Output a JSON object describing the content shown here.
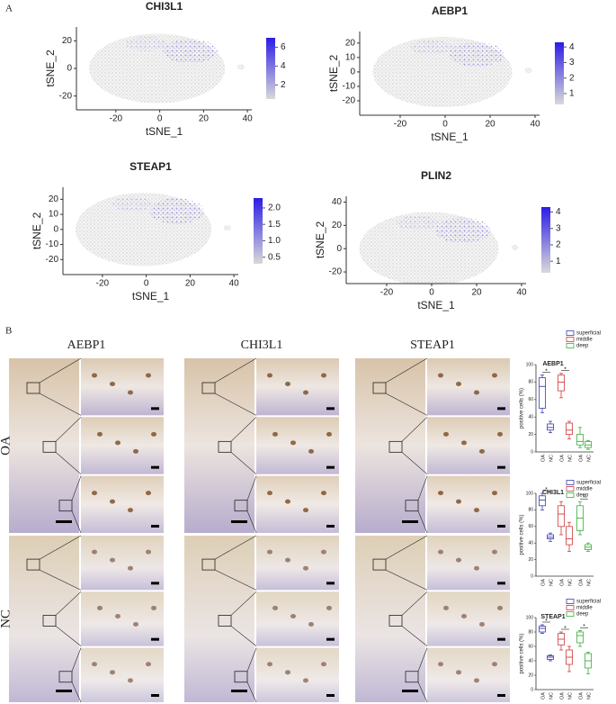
{
  "panel_a": {
    "label": "A",
    "plots": [
      {
        "title": "CHI3L1",
        "xlabel": "tSNE_1",
        "ylabel": "tSNE_2",
        "xlim": [
          -38,
          42
        ],
        "ylim": [
          -30,
          30
        ],
        "xticks": [
          -20,
          0,
          20,
          40
        ],
        "yticks": [
          -20,
          0,
          20
        ],
        "colorbar": {
          "lim": [
            0.5,
            7
          ],
          "ticks": [
            2,
            4,
            6
          ]
        }
      },
      {
        "title": "AEBP1",
        "xlabel": "tSNE_1",
        "ylabel": "tSNE_2",
        "xlim": [
          -38,
          42
        ],
        "ylim": [
          -30,
          28
        ],
        "xticks": [
          -20,
          0,
          20,
          40
        ],
        "yticks": [
          -20,
          -10,
          0,
          10,
          20
        ],
        "colorbar": {
          "lim": [
            0.3,
            4.3
          ],
          "ticks": [
            1,
            2,
            3,
            4
          ]
        }
      },
      {
        "title": "STEAP1",
        "xlabel": "tSNE_1",
        "ylabel": "tSNE_2",
        "xlim": [
          -38,
          42
        ],
        "ylim": [
          -30,
          28
        ],
        "xticks": [
          -20,
          0,
          20,
          40
        ],
        "yticks": [
          -20,
          -10,
          0,
          10,
          20
        ],
        "colorbar": {
          "lim": [
            0.3,
            2.3
          ],
          "ticks": [
            0.5,
            {
              "value": 1,
              "label": "1.0"
            },
            1.5,
            {
              "value": 2,
              "label": "2.0"
            }
          ]
        }
      },
      {
        "title": "PLIN2",
        "xlabel": "tSNE_1",
        "ylabel": "tSNE_2",
        "xlim": [
          -38,
          42
        ],
        "ylim": [
          -30,
          45
        ],
        "xticks": [
          -20,
          0,
          20,
          40
        ],
        "yticks": [
          -20,
          0,
          20,
          40
        ],
        "colorbar": {
          "lim": [
            0.3,
            4.3
          ],
          "ticks": [
            1,
            2,
            3,
            4
          ]
        }
      }
    ]
  },
  "panel_b": {
    "label": "B",
    "images": {
      "genes": [
        "AEBP1",
        "CHI3L1",
        "STEAP1"
      ],
      "rows": [
        "OA",
        "NC"
      ]
    },
    "charts": [
      {
        "type": "box",
        "title": "AEBP1",
        "ylabel": "positive cells (%)",
        "ylim": [
          0,
          100
        ],
        "yticks": [
          0,
          20,
          40,
          60,
          80,
          100
        ],
        "categories": [
          "OA",
          "NC"
        ],
        "series": [
          {
            "name": "superficial",
            "color": "#3b3bb0",
            "annotation": "*",
            "boxes": [
              {
                "min": 45,
                "q1": 50,
                "median": 75,
                "q3": 85,
                "max": 88
              },
              {
                "min": 22,
                "q1": 25,
                "median": 28,
                "q3": 32,
                "max": 35
              }
            ]
          },
          {
            "name": "middle",
            "color": "#d03a3a",
            "annotation": "*",
            "boxes": [
              {
                "min": 62,
                "q1": 70,
                "median": 80,
                "q3": 88,
                "max": 90
              },
              {
                "min": 15,
                "q1": 20,
                "median": 25,
                "q3": 33,
                "max": 35
              }
            ]
          },
          {
            "name": "deep",
            "color": "#3aae3a",
            "boxes": [
              {
                "min": 5,
                "q1": 8,
                "median": 12,
                "q3": 20,
                "max": 28
              },
              {
                "min": 3,
                "q1": 5,
                "median": 8,
                "q3": 12,
                "max": 13
              }
            ]
          }
        ]
      },
      {
        "type": "box",
        "title": "CHI3L1",
        "ylabel": "positive cells (%)",
        "ylim": [
          0,
          100
        ],
        "yticks": [
          0,
          20,
          40,
          60,
          80,
          100
        ],
        "categories": [
          "OA",
          "NC"
        ],
        "series": [
          {
            "name": "superficial",
            "color": "#3b3bb0",
            "annotation": "*",
            "boxes": [
              {
                "min": 80,
                "q1": 85,
                "median": 92,
                "q3": 97,
                "max": 100
              },
              {
                "min": 42,
                "q1": 45,
                "median": 47,
                "q3": 50,
                "max": 52
              }
            ]
          },
          {
            "name": "middle",
            "color": "#d03a3a",
            "boxes": [
              {
                "min": 50,
                "q1": 60,
                "median": 75,
                "q3": 85,
                "max": 90
              },
              {
                "min": 30,
                "q1": 38,
                "median": 45,
                "q3": 60,
                "max": 65
              }
            ]
          },
          {
            "name": "deep",
            "color": "#3aae3a",
            "annotation": "*",
            "boxes": [
              {
                "min": 50,
                "q1": 55,
                "median": 70,
                "q3": 85,
                "max": 90
              },
              {
                "min": 30,
                "q1": 32,
                "median": 35,
                "q3": 38,
                "max": 40
              }
            ]
          }
        ]
      },
      {
        "type": "box",
        "title": "STEAP1",
        "ylabel": "positive cells (%)",
        "ylim": [
          0,
          100
        ],
        "yticks": [
          0,
          20,
          40,
          60,
          80,
          100
        ],
        "categories": [
          "OA",
          "NC"
        ],
        "series": [
          {
            "name": "superficial",
            "color": "#3b3bb0",
            "annotation": "*",
            "boxes": [
              {
                "min": 78,
                "q1": 80,
                "median": 85,
                "q3": 88,
                "max": 90
              },
              {
                "min": 40,
                "q1": 42,
                "median": 45,
                "q3": 47,
                "max": 48
              }
            ]
          },
          {
            "name": "middle",
            "color": "#d03a3a",
            "annotation": "*",
            "boxes": [
              {
                "min": 55,
                "q1": 62,
                "median": 70,
                "q3": 78,
                "max": 80
              },
              {
                "min": 25,
                "q1": 35,
                "median": 45,
                "q3": 55,
                "max": 60
              }
            ]
          },
          {
            "name": "deep",
            "color": "#3aae3a",
            "annotation": "*",
            "boxes": [
              {
                "min": 60,
                "q1": 65,
                "median": 75,
                "q3": 80,
                "max": 82
              },
              {
                "min": 22,
                "q1": 30,
                "median": 40,
                "q3": 50,
                "max": 52
              }
            ]
          }
        ]
      }
    ]
  }
}
